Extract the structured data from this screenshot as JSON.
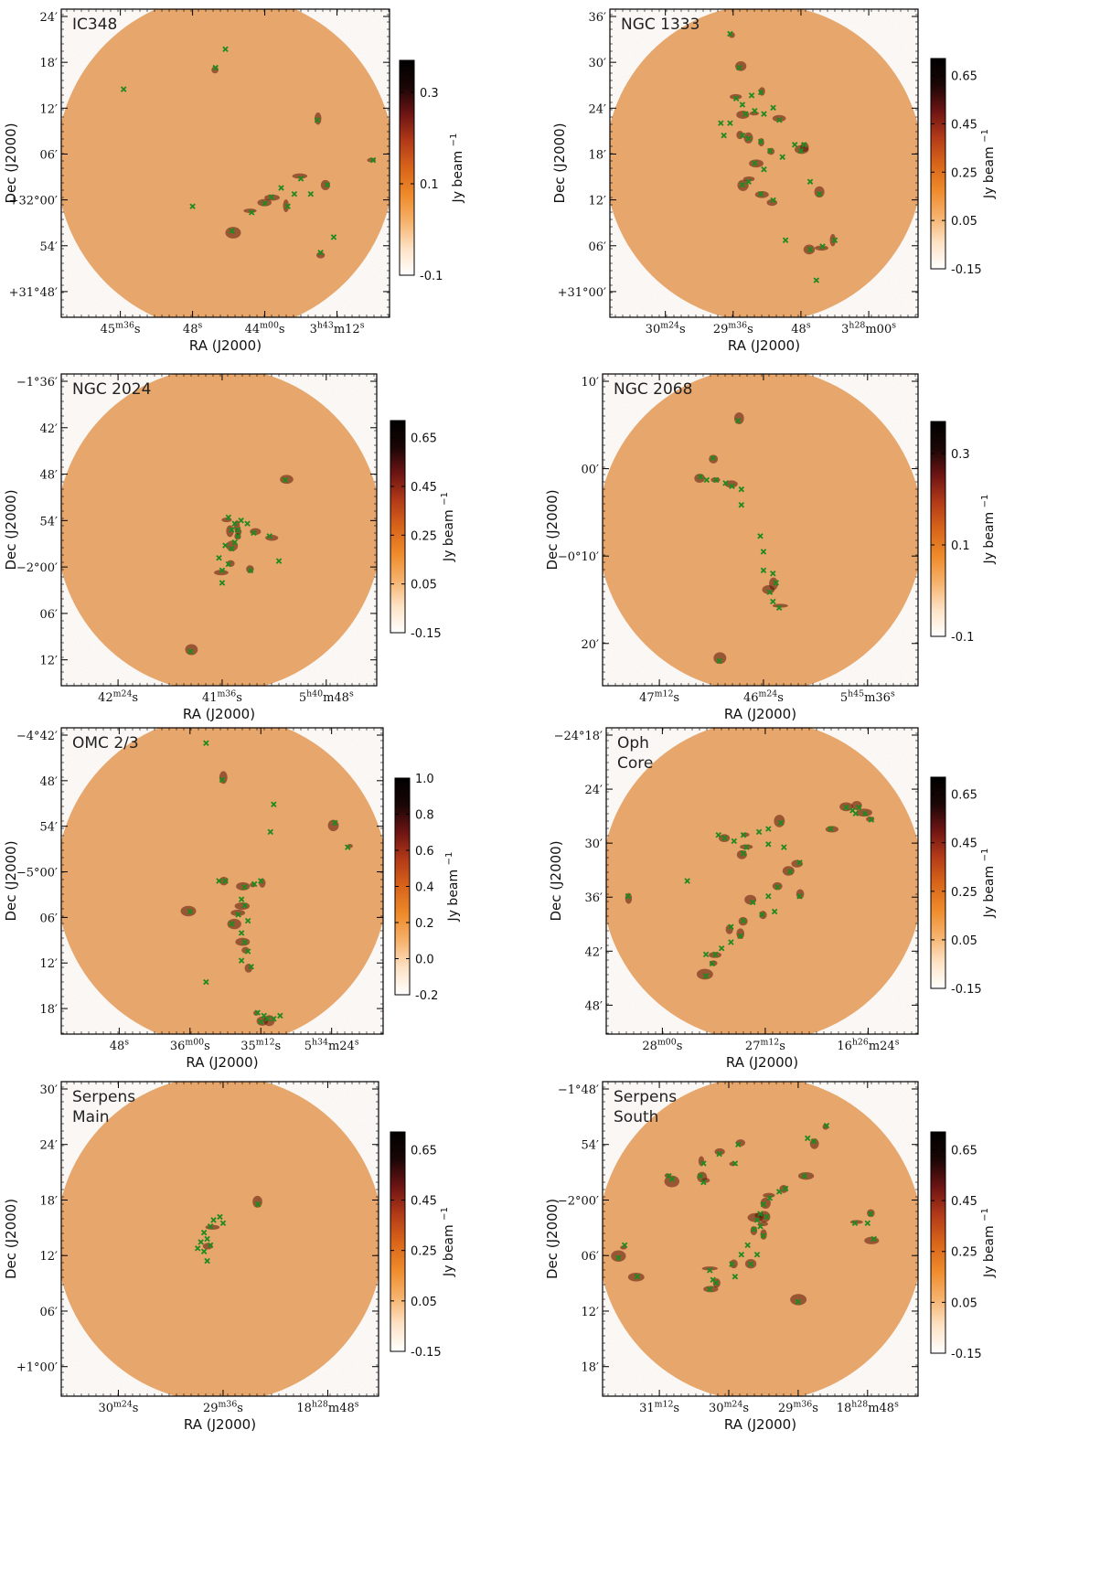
{
  "figure": {
    "colors": {
      "background": "#e9a76b",
      "marker": "#1f8a1f",
      "frame": "#000000"
    },
    "colorbar_gradient": [
      "#ffffff",
      "#fde2c5",
      "#f6b16b",
      "#ee8a2a",
      "#d8641a",
      "#b23a18",
      "#6e1414",
      "#1a0606",
      "#000000"
    ]
  },
  "chart_data": [
    {
      "type": "scatter",
      "name": "IC348",
      "title": "IC348",
      "xlabel": "RA (J2000)",
      "ylabel": "Dec (J2000)",
      "xticks": [
        "45^m36^s",
        "48^s",
        "44^m00^s",
        "3^h43^m12^s"
      ],
      "yticks": [
        "24′",
        "18′",
        "12′",
        "06′",
        "+32°00′",
        "54′",
        "+31°48′"
      ],
      "colorbar": {
        "label": "Jy beam ^−1",
        "ticks": [
          "0.3",
          "0.1",
          "-0.1"
        ],
        "range": [
          -0.1,
          0.37
        ]
      },
      "sources": [
        [
          0.19,
          0.26
        ],
        [
          0.5,
          0.13
        ],
        [
          0.47,
          0.19
        ],
        [
          0.78,
          0.36
        ],
        [
          0.95,
          0.49
        ],
        [
          0.67,
          0.58
        ],
        [
          0.73,
          0.55
        ],
        [
          0.76,
          0.6
        ],
        [
          0.81,
          0.57
        ],
        [
          0.71,
          0.6
        ],
        [
          0.69,
          0.64
        ],
        [
          0.64,
          0.61
        ],
        [
          0.62,
          0.63
        ],
        [
          0.58,
          0.66
        ],
        [
          0.52,
          0.72
        ],
        [
          0.4,
          0.64
        ],
        [
          0.83,
          0.74
        ],
        [
          0.79,
          0.79
        ]
      ]
    },
    {
      "type": "scatter",
      "name": "NGC 1333",
      "title": "NGC 1333",
      "xlabel": "RA (J2000)",
      "ylabel": "Dec (J2000)",
      "xticks": [
        "30^m24^s",
        "29^m36^s",
        "48^s",
        "3^h28^m00^s"
      ],
      "yticks": [
        "36′",
        "30′",
        "24′",
        "18′",
        "12′",
        "06′",
        "+31°00′"
      ],
      "colorbar": {
        "label": "Jy beam ^−1",
        "ticks": [
          "0.65",
          "0.45",
          "0.25",
          "0.05",
          "-0.15"
        ],
        "range": [
          -0.15,
          0.72
        ]
      },
      "sources": [
        [
          0.39,
          0.08
        ],
        [
          0.42,
          0.19
        ],
        [
          0.41,
          0.29
        ],
        [
          0.43,
          0.31
        ],
        [
          0.46,
          0.28
        ],
        [
          0.49,
          0.27
        ],
        [
          0.44,
          0.34
        ],
        [
          0.47,
          0.33
        ],
        [
          0.5,
          0.34
        ],
        [
          0.53,
          0.32
        ],
        [
          0.55,
          0.36
        ],
        [
          0.36,
          0.37
        ],
        [
          0.39,
          0.37
        ],
        [
          0.37,
          0.41
        ],
        [
          0.43,
          0.41
        ],
        [
          0.45,
          0.42
        ],
        [
          0.49,
          0.43
        ],
        [
          0.52,
          0.46
        ],
        [
          0.47,
          0.5
        ],
        [
          0.5,
          0.52
        ],
        [
          0.56,
          0.48
        ],
        [
          0.6,
          0.44
        ],
        [
          0.63,
          0.44
        ],
        [
          0.62,
          0.46
        ],
        [
          0.65,
          0.56
        ],
        [
          0.68,
          0.6
        ],
        [
          0.45,
          0.56
        ],
        [
          0.43,
          0.57
        ],
        [
          0.49,
          0.6
        ],
        [
          0.53,
          0.62
        ],
        [
          0.57,
          0.75
        ],
        [
          0.65,
          0.78
        ],
        [
          0.69,
          0.77
        ],
        [
          0.73,
          0.75
        ],
        [
          0.67,
          0.88
        ]
      ]
    },
    {
      "type": "scatter",
      "name": "NGC 2024",
      "title": "NGC 2024",
      "xlabel": "RA (J2000)",
      "ylabel": "Dec (J2000)",
      "xticks": [
        "42^m24^s",
        "41^m36^s",
        "5^h40^m48^s"
      ],
      "yticks": [
        "−1°36′",
        "42′",
        "48′",
        "54′",
        "−2°00′",
        "06′",
        "12′"
      ],
      "colorbar": {
        "label": "Jy beam ^−1",
        "ticks": [
          "0.65",
          "0.45",
          "0.25",
          "0.05",
          "-0.15"
        ],
        "range": [
          -0.15,
          0.72
        ]
      },
      "sources": [
        [
          0.71,
          0.34
        ],
        [
          0.53,
          0.46
        ],
        [
          0.55,
          0.48
        ],
        [
          0.56,
          0.5
        ],
        [
          0.54,
          0.5
        ],
        [
          0.56,
          0.52
        ],
        [
          0.55,
          0.54
        ],
        [
          0.52,
          0.55
        ],
        [
          0.54,
          0.56
        ],
        [
          0.57,
          0.47
        ],
        [
          0.59,
          0.48
        ],
        [
          0.61,
          0.51
        ],
        [
          0.66,
          0.52
        ],
        [
          0.5,
          0.59
        ],
        [
          0.53,
          0.61
        ],
        [
          0.51,
          0.63
        ],
        [
          0.6,
          0.63
        ],
        [
          0.69,
          0.6
        ],
        [
          0.51,
          0.67
        ],
        [
          0.41,
          0.89
        ]
      ]
    },
    {
      "type": "scatter",
      "name": "NGC 2068",
      "title": "NGC 2068",
      "xlabel": "RA (J2000)",
      "ylabel": "Dec (J2000)",
      "xticks": [
        "47^m12^s",
        "46^m24^s",
        "5^h45^m36^s"
      ],
      "yticks": [
        "10′",
        "00′",
        "−0°10′",
        "20′"
      ],
      "colorbar": {
        "label": "Jy beam ^−1",
        "ticks": [
          "0.3",
          "0.1",
          "-0.1"
        ],
        "range": [
          -0.1,
          0.37
        ]
      },
      "sources": [
        [
          0.43,
          0.15
        ],
        [
          0.35,
          0.27
        ],
        [
          0.31,
          0.33
        ],
        [
          0.33,
          0.34
        ],
        [
          0.36,
          0.34
        ],
        [
          0.39,
          0.35
        ],
        [
          0.41,
          0.36
        ],
        [
          0.44,
          0.37
        ],
        [
          0.44,
          0.42
        ],
        [
          0.5,
          0.52
        ],
        [
          0.51,
          0.57
        ],
        [
          0.51,
          0.63
        ],
        [
          0.54,
          0.64
        ],
        [
          0.55,
          0.67
        ],
        [
          0.53,
          0.7
        ],
        [
          0.54,
          0.73
        ],
        [
          0.56,
          0.75
        ],
        [
          0.37,
          0.92
        ]
      ]
    },
    {
      "type": "scatter",
      "name": "OMC 2/3",
      "title": "OMC 2/3",
      "xlabel": "RA (J2000)",
      "ylabel": "Dec (J2000)",
      "xticks": [
        "48^s",
        "36^m00^s",
        "35^m12^s",
        "5^h34^m24^s"
      ],
      "yticks": [
        "−4°42′",
        "48′",
        "54′",
        "−5°00′",
        "06′",
        "12′",
        "18′"
      ],
      "colorbar": {
        "label": "Jy beam ^−1",
        "ticks": [
          "1.0",
          "0.8",
          "0.6",
          "0.4",
          "0.2",
          "0.0",
          "-0.2"
        ],
        "range": [
          -0.2,
          1.0
        ]
      },
      "sources": [
        [
          0.45,
          0.05
        ],
        [
          0.5,
          0.17
        ],
        [
          0.66,
          0.25
        ],
        [
          0.85,
          0.31
        ],
        [
          0.89,
          0.39
        ],
        [
          0.65,
          0.34
        ],
        [
          0.49,
          0.5
        ],
        [
          0.51,
          0.5
        ],
        [
          0.57,
          0.52
        ],
        [
          0.6,
          0.51
        ],
        [
          0.62,
          0.5
        ],
        [
          0.56,
          0.56
        ],
        [
          0.57,
          0.58
        ],
        [
          0.55,
          0.61
        ],
        [
          0.58,
          0.63
        ],
        [
          0.53,
          0.64
        ],
        [
          0.56,
          0.67
        ],
        [
          0.57,
          0.7
        ],
        [
          0.58,
          0.73
        ],
        [
          0.56,
          0.76
        ],
        [
          0.59,
          0.78
        ],
        [
          0.4,
          0.6
        ],
        [
          0.45,
          0.83
        ],
        [
          0.61,
          0.93
        ],
        [
          0.63,
          0.94
        ],
        [
          0.64,
          0.95
        ],
        [
          0.62,
          0.96
        ],
        [
          0.66,
          0.95
        ],
        [
          0.68,
          0.94
        ]
      ]
    },
    {
      "type": "scatter",
      "name": "Oph Core",
      "title": [
        "Oph",
        "Core"
      ],
      "xlabel": "RA (J2000)",
      "ylabel": "Dec (J2000)",
      "xticks": [
        "28^m00^s",
        "27^m12^s",
        "16^h26^m24^s"
      ],
      "yticks": [
        "−24°18′",
        "24′",
        "30′",
        "36′",
        "42′",
        "48′"
      ],
      "colorbar": {
        "label": "Jy beam ^−1",
        "ticks": [
          "0.65",
          "0.45",
          "0.25",
          "0.05",
          "-0.15"
        ],
        "range": [
          -0.15,
          0.72
        ]
      },
      "sources": [
        [
          0.77,
          0.26
        ],
        [
          0.79,
          0.27
        ],
        [
          0.81,
          0.26
        ],
        [
          0.83,
          0.28
        ],
        [
          0.8,
          0.28
        ],
        [
          0.85,
          0.3
        ],
        [
          0.72,
          0.33
        ],
        [
          0.36,
          0.35
        ],
        [
          0.38,
          0.36
        ],
        [
          0.41,
          0.37
        ],
        [
          0.44,
          0.35
        ],
        [
          0.45,
          0.39
        ],
        [
          0.44,
          0.41
        ],
        [
          0.49,
          0.34
        ],
        [
          0.52,
          0.33
        ],
        [
          0.56,
          0.31
        ],
        [
          0.52,
          0.38
        ],
        [
          0.57,
          0.39
        ],
        [
          0.62,
          0.44
        ],
        [
          0.59,
          0.47
        ],
        [
          0.55,
          0.52
        ],
        [
          0.52,
          0.55
        ],
        [
          0.47,
          0.57
        ],
        [
          0.54,
          0.6
        ],
        [
          0.5,
          0.61
        ],
        [
          0.44,
          0.63
        ],
        [
          0.4,
          0.65
        ],
        [
          0.43,
          0.68
        ],
        [
          0.4,
          0.7
        ],
        [
          0.37,
          0.72
        ],
        [
          0.35,
          0.74
        ],
        [
          0.32,
          0.74
        ],
        [
          0.34,
          0.77
        ],
        [
          0.32,
          0.81
        ],
        [
          0.62,
          0.55
        ],
        [
          0.26,
          0.5
        ],
        [
          0.07,
          0.55
        ]
      ]
    },
    {
      "type": "scatter",
      "name": "Serpens Main",
      "title": [
        "Serpens",
        "Main"
      ],
      "xlabel": "RA (J2000)",
      "ylabel": "Dec (J2000)",
      "xticks": [
        "30^m24^s",
        "29^m36^s",
        "18^h28^m48^s"
      ],
      "yticks": [
        "30′",
        "24′",
        "18′",
        "12′",
        "06′",
        "+1°00′"
      ],
      "colorbar": {
        "label": "Jy beam ^−1",
        "ticks": [
          "0.65",
          "0.45",
          "0.25",
          "0.05",
          "-0.15"
        ],
        "range": [
          -0.15,
          0.72
        ]
      },
      "sources": [
        [
          0.62,
          0.39
        ],
        [
          0.48,
          0.44
        ],
        [
          0.5,
          0.43
        ],
        [
          0.51,
          0.45
        ],
        [
          0.47,
          0.46
        ],
        [
          0.45,
          0.48
        ],
        [
          0.46,
          0.5
        ],
        [
          0.44,
          0.51
        ],
        [
          0.47,
          0.52
        ],
        [
          0.45,
          0.54
        ],
        [
          0.43,
          0.53
        ],
        [
          0.46,
          0.57
        ]
      ]
    },
    {
      "type": "scatter",
      "name": "Serpens South",
      "title": [
        "Serpens",
        "South"
      ],
      "xlabel": "RA (J2000)",
      "ylabel": "Dec (J2000)",
      "xticks": [
        "31^m12^s",
        "30^m24^s",
        "29^m36^s",
        "18^h28^m48^s"
      ],
      "yticks": [
        "−1°48′",
        "54′",
        "−2°00′",
        "06′",
        "12′",
        "18′"
      ],
      "colorbar": {
        "label": "Jy beam ^−1",
        "ticks": [
          "0.65",
          "0.45",
          "0.25",
          "0.05",
          "-0.15"
        ],
        "range": [
          -0.15,
          0.72
        ]
      },
      "sources": [
        [
          0.71,
          0.14
        ],
        [
          0.65,
          0.18
        ],
        [
          0.67,
          0.19
        ],
        [
          0.43,
          0.2
        ],
        [
          0.37,
          0.23
        ],
        [
          0.32,
          0.26
        ],
        [
          0.42,
          0.26
        ],
        [
          0.21,
          0.3
        ],
        [
          0.22,
          0.31
        ],
        [
          0.31,
          0.3
        ],
        [
          0.32,
          0.32
        ],
        [
          0.64,
          0.3
        ],
        [
          0.58,
          0.34
        ],
        [
          0.56,
          0.35
        ],
        [
          0.53,
          0.37
        ],
        [
          0.51,
          0.39
        ],
        [
          0.5,
          0.42
        ],
        [
          0.52,
          0.43
        ],
        [
          0.49,
          0.44
        ],
        [
          0.5,
          0.46
        ],
        [
          0.48,
          0.47
        ],
        [
          0.51,
          0.49
        ],
        [
          0.46,
          0.52
        ],
        [
          0.44,
          0.55
        ],
        [
          0.41,
          0.58
        ],
        [
          0.42,
          0.62
        ],
        [
          0.34,
          0.6
        ],
        [
          0.35,
          0.63
        ],
        [
          0.36,
          0.64
        ],
        [
          0.34,
          0.66
        ],
        [
          0.49,
          0.55
        ],
        [
          0.47,
          0.58
        ],
        [
          0.05,
          0.56
        ],
        [
          0.07,
          0.52
        ],
        [
          0.11,
          0.62
        ],
        [
          0.8,
          0.45
        ],
        [
          0.84,
          0.45
        ],
        [
          0.86,
          0.5
        ],
        [
          0.85,
          0.42
        ],
        [
          0.62,
          0.7
        ]
      ]
    }
  ]
}
